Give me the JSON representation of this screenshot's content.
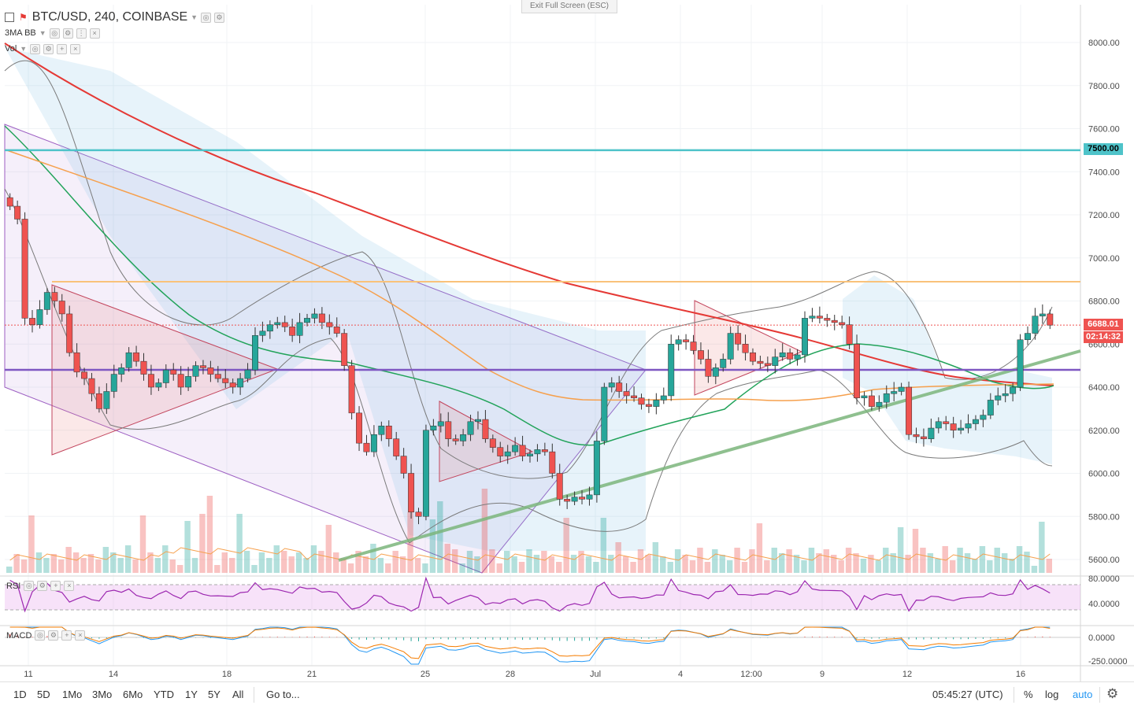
{
  "header": {
    "symbol_title": "BTC/USD, 240, COINBASE",
    "indicators": [
      "3MA BB",
      "Vol"
    ],
    "exit_fullscreen": "Exit Full Screen (ESC)"
  },
  "panes": {
    "rsi_label": "RSI",
    "macd_label": "MACD"
  },
  "price_axis": {
    "labels": [
      "8000.00",
      "7800.00",
      "7600.00",
      "7400.00",
      "7200.00",
      "7000.00",
      "6800.00",
      "6600.00",
      "6400.00",
      "6200.00",
      "6000.00",
      "5800.00",
      "5600.00"
    ],
    "tags": {
      "resistance": "7500.00",
      "last_price": "6688.01",
      "countdown": "02:14:32"
    },
    "rsi_labels": [
      "80.0000",
      "40.0000"
    ],
    "macd_labels": [
      "0.0000",
      "-250.0000"
    ]
  },
  "time_axis": {
    "labels": [
      "11",
      "14",
      "18",
      "21",
      "25",
      "28",
      "Jul",
      "4",
      "12:00",
      "9",
      "12",
      "16"
    ]
  },
  "bottom_bar": {
    "ranges": [
      "1D",
      "5D",
      "1Mo",
      "3Mo",
      "6Mo",
      "YTD",
      "1Y",
      "5Y",
      "All"
    ],
    "goto": "Go to...",
    "clock": "05:45:27 (UTC)",
    "percent": "%",
    "log": "log",
    "auto": "auto"
  },
  "colors": {
    "up": "#26a69a",
    "down": "#ef5350",
    "ma_red": "#e53935",
    "ma_green": "#22a35a",
    "ma_orange": "#f6a04d",
    "level_cyan": "#4ec3c9",
    "level_orange": "#f9c27a",
    "level_purple": "#7e57c2",
    "trend_green": "#7bb57b"
  },
  "chart_data": {
    "type": "candlestick",
    "yrange": [
      5560,
      8100
    ],
    "levels": [
      7500,
      6890,
      6480
    ],
    "last_price": 6688.01,
    "closes": [
      7240,
      7180,
      6720,
      6690,
      6760,
      6840,
      6800,
      6740,
      6560,
      6470,
      6440,
      6370,
      6300,
      6380,
      6460,
      6490,
      6560,
      6520,
      6460,
      6400,
      6420,
      6480,
      6460,
      6400,
      6450,
      6500,
      6490,
      6460,
      6440,
      6420,
      6400,
      6440,
      6480,
      6640,
      6660,
      6690,
      6700,
      6680,
      6640,
      6700,
      6720,
      6740,
      6700,
      6680,
      6650,
      6500,
      6280,
      6140,
      6100,
      6180,
      6220,
      6160,
      6080,
      6000,
      5820,
      5800,
      6200,
      6220,
      6240,
      6160,
      6150,
      6180,
      6240,
      6250,
      6160,
      6120,
      6080,
      6100,
      6130,
      6080,
      6090,
      6110,
      6100,
      6000,
      5880,
      5870,
      5890,
      5880,
      5900,
      6150,
      6400,
      6420,
      6380,
      6360,
      6350,
      6320,
      6310,
      6340,
      6360,
      6600,
      6620,
      6610,
      6570,
      6530,
      6450,
      6490,
      6530,
      6650,
      6600,
      6560,
      6520,
      6510,
      6500,
      6540,
      6560,
      6530,
      6550,
      6720,
      6730,
      6720,
      6710,
      6700,
      6690,
      6600,
      6350,
      6360,
      6310,
      6330,
      6370,
      6380,
      6400,
      6180,
      6170,
      6160,
      6210,
      6240,
      6230,
      6200,
      6210,
      6230,
      6250,
      6270,
      6340,
      6360,
      6370,
      6400,
      6620,
      6650,
      6730,
      6740,
      6688
    ]
  }
}
